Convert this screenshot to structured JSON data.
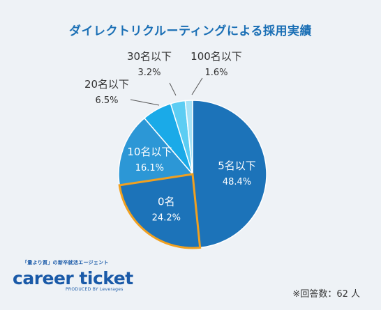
{
  "title": "ダイレクトリクルーティングによる採用実績",
  "chart_data": {
    "type": "pie",
    "title": "ダイレクトリクルーティングによる採用実績",
    "slices": [
      {
        "label": "5名以下",
        "value": 48.4,
        "value_label": "48.4%",
        "color": "#1c73b9",
        "text_color": "#ffffff",
        "highlight": false
      },
      {
        "label": "0名",
        "value": 24.2,
        "value_label": "24.2%",
        "color": "#1c73b9",
        "text_color": "#ffffff",
        "highlight": true
      },
      {
        "label": "10名以下",
        "value": 16.1,
        "value_label": "16.1%",
        "color": "#2c97d6",
        "text_color": "#ffffff",
        "highlight": false
      },
      {
        "label": "20名以下",
        "value": 6.5,
        "value_label": "6.5%",
        "color": "#1aaae8",
        "text_color": "#333333",
        "highlight": false
      },
      {
        "label": "30名以下",
        "value": 3.2,
        "value_label": "3.2%",
        "color": "#5ccdf3",
        "text_color": "#333333",
        "highlight": false
      },
      {
        "label": "100名以下",
        "value": 1.6,
        "value_label": "1.6%",
        "color": "#a5e2f7",
        "text_color": "#333333",
        "highlight": false
      }
    ],
    "highlight_color": "#f0a020",
    "start": "top, clockwise"
  },
  "brand": {
    "tagline": "「量より質」の新卒就活エージェント",
    "name": "career ticket",
    "byline": "PRODUCED BY Leverages"
  },
  "footnote": "※回答数：62 人"
}
